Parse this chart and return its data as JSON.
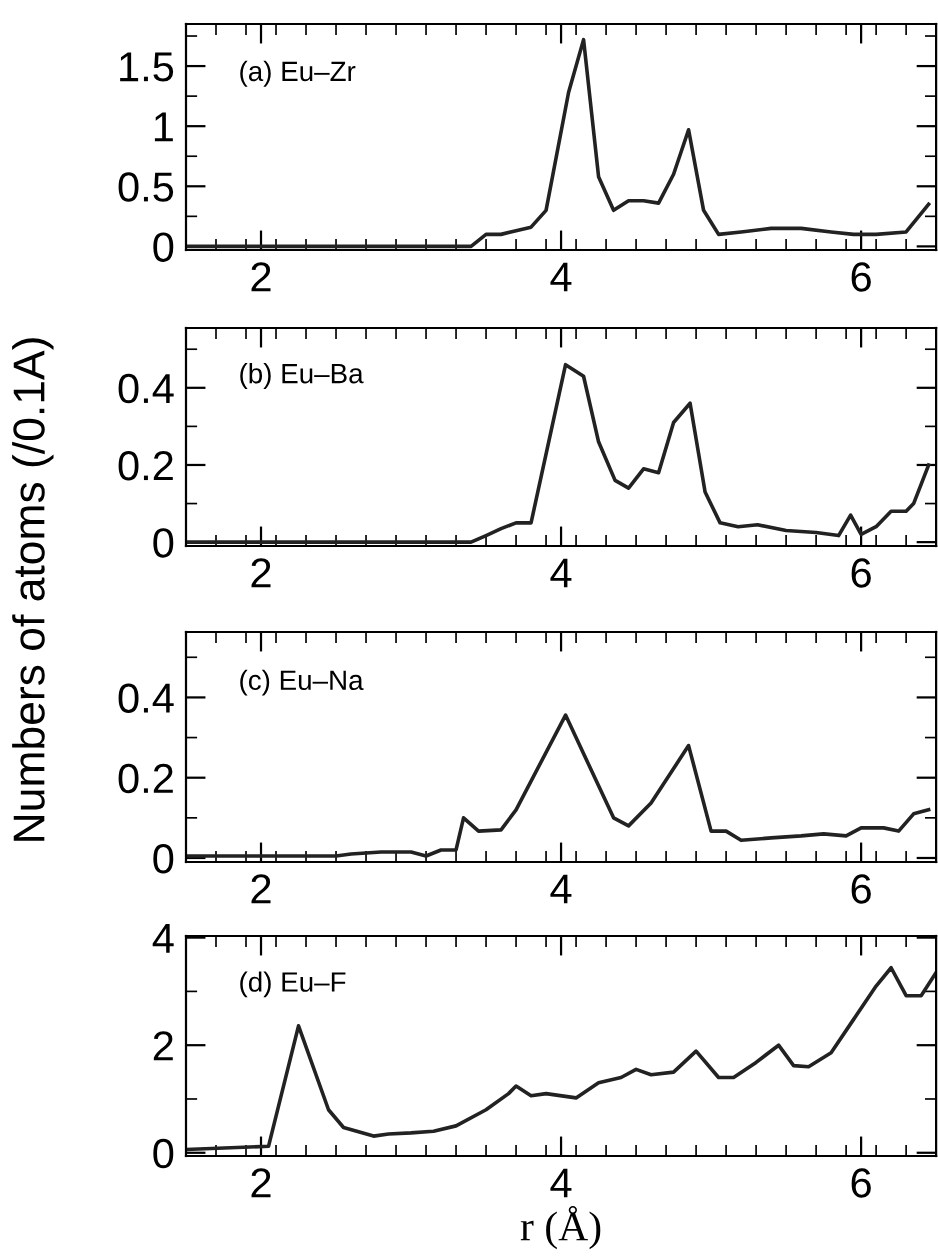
{
  "chart_data": [
    {
      "type": "line",
      "ylabel": "Numbers of atoms (/0.1A)",
      "annotations": [
        "(a) Eu–Zr"
      ],
      "xlim": [
        1.5,
        6.5
      ],
      "xticks": [
        2,
        4,
        6
      ],
      "ylim": [
        -0.03,
        1.85
      ],
      "yticks": [
        0,
        0.5,
        1,
        1.5
      ],
      "line_style": "solid",
      "marker": "none",
      "grid": false,
      "legend": false,
      "series": [
        {
          "color": "#222222",
          "x": [
            1.5,
            3.4,
            3.5,
            3.6,
            3.7,
            3.8,
            3.9,
            4.05,
            4.15,
            4.25,
            4.35,
            4.45,
            4.55,
            4.65,
            4.75,
            4.85,
            4.95,
            5.05,
            5.2,
            5.4,
            5.6,
            5.8,
            5.95,
            6.1,
            6.3,
            6.45
          ],
          "values": [
            0,
            0,
            0.1,
            0.1,
            0.13,
            0.16,
            0.3,
            1.28,
            1.72,
            0.58,
            0.3,
            0.38,
            0.38,
            0.36,
            0.6,
            0.97,
            0.3,
            0.1,
            0.12,
            0.15,
            0.15,
            0.12,
            0.1,
            0.1,
            0.12,
            0.35
          ]
        }
      ]
    },
    {
      "type": "line",
      "annotations": [
        "(b) Eu–Ba"
      ],
      "xlim": [
        1.5,
        6.5
      ],
      "xticks": [
        2,
        4,
        6
      ],
      "ylim": [
        -0.01,
        0.555
      ],
      "yticks": [
        0,
        0.2,
        0.4
      ],
      "line_style": "solid",
      "marker": "none",
      "grid": false,
      "legend": false,
      "series": [
        {
          "color": "#222222",
          "x": [
            1.5,
            3.4,
            3.5,
            3.6,
            3.7,
            3.8,
            4.03,
            4.15,
            4.25,
            4.36,
            4.45,
            4.55,
            4.65,
            4.75,
            4.86,
            4.96,
            5.06,
            5.18,
            5.31,
            5.5,
            5.7,
            5.85,
            5.93,
            6.0,
            6.1,
            6.2,
            6.3,
            6.35,
            6.45
          ],
          "values": [
            0,
            0,
            0.017,
            0.035,
            0.05,
            0.05,
            0.46,
            0.43,
            0.26,
            0.16,
            0.14,
            0.19,
            0.18,
            0.31,
            0.36,
            0.13,
            0.05,
            0.04,
            0.045,
            0.03,
            0.025,
            0.017,
            0.07,
            0.02,
            0.04,
            0.08,
            0.08,
            0.1,
            0.2
          ]
        }
      ]
    },
    {
      "type": "line",
      "annotations": [
        "(c) Eu–Na"
      ],
      "xlim": [
        1.5,
        6.5
      ],
      "xticks": [
        2,
        4,
        6
      ],
      "ylim": [
        -0.01,
        0.563
      ],
      "yticks": [
        0,
        0.2,
        0.4
      ],
      "line_style": "solid",
      "marker": "none",
      "grid": false,
      "legend": false,
      "series": [
        {
          "color": "#222222",
          "x": [
            1.5,
            2.5,
            2.6,
            2.8,
            3.0,
            3.1,
            3.2,
            3.3,
            3.35,
            3.45,
            3.6,
            3.7,
            4.03,
            4.35,
            4.45,
            4.6,
            4.85,
            5.0,
            5.1,
            5.2,
            5.4,
            5.6,
            5.75,
            5.9,
            6.0,
            6.15,
            6.25,
            6.35,
            6.45
          ],
          "values": [
            0.005,
            0.005,
            0.01,
            0.015,
            0.015,
            0.005,
            0.02,
            0.02,
            0.1,
            0.067,
            0.07,
            0.12,
            0.356,
            0.1,
            0.08,
            0.137,
            0.28,
            0.067,
            0.067,
            0.044,
            0.05,
            0.055,
            0.06,
            0.055,
            0.075,
            0.075,
            0.067,
            0.11,
            0.12
          ]
        }
      ]
    },
    {
      "type": "line",
      "xlabel": "r (Å)",
      "annotations": [
        "(d) Eu–F"
      ],
      "xlim": [
        1.5,
        6.5
      ],
      "xticks": [
        2,
        4,
        6
      ],
      "ylim": [
        -0.06,
        4.03
      ],
      "yticks": [
        0,
        2,
        4
      ],
      "line_style": "solid",
      "marker": "none",
      "grid": false,
      "legend": false,
      "series": [
        {
          "color": "#222222",
          "x": [
            1.5,
            2.05,
            2.25,
            2.45,
            2.55,
            2.75,
            2.85,
            3.0,
            3.15,
            3.3,
            3.5,
            3.65,
            3.7,
            3.8,
            3.9,
            4.1,
            4.25,
            4.4,
            4.5,
            4.6,
            4.75,
            4.9,
            5.05,
            5.15,
            5.3,
            5.45,
            5.55,
            5.65,
            5.8,
            5.95,
            6.1,
            6.2,
            6.3,
            6.4,
            6.5
          ],
          "values": [
            0.06,
            0.12,
            2.36,
            0.8,
            0.47,
            0.31,
            0.35,
            0.37,
            0.4,
            0.5,
            0.8,
            1.1,
            1.24,
            1.06,
            1.1,
            1.02,
            1.3,
            1.4,
            1.55,
            1.45,
            1.5,
            1.89,
            1.4,
            1.4,
            1.68,
            2.0,
            1.62,
            1.6,
            1.86,
            2.48,
            3.1,
            3.44,
            2.92,
            2.92,
            3.35
          ]
        }
      ]
    }
  ]
}
